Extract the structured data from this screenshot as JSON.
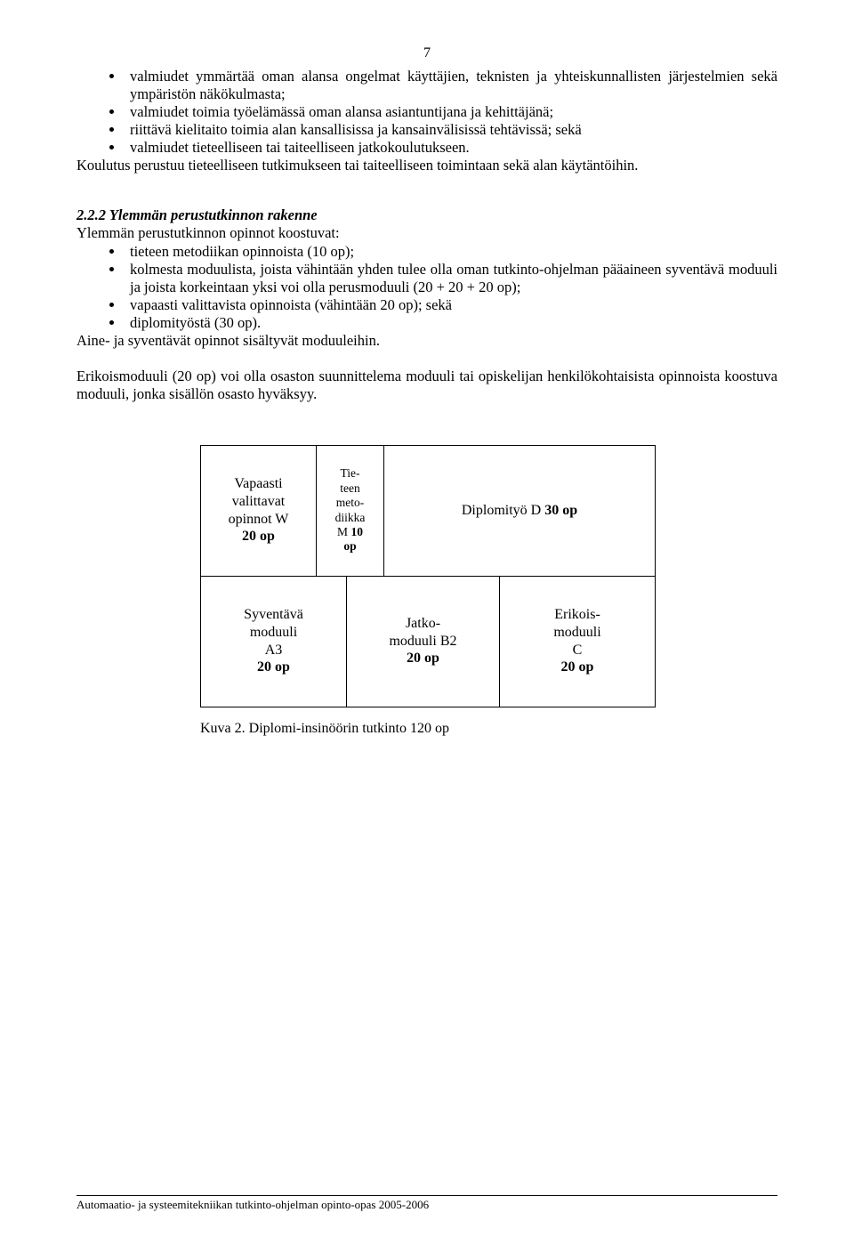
{
  "page_number": "7",
  "bullets_top": [
    "valmiudet ymmärtää oman alansa ongelmat käyttäjien, teknisten ja yhteiskunnallisten järjestelmien sekä ympäristön näkökulmasta;",
    "valmiudet toimia työelämässä oman alansa asiantuntijana ja kehittäjänä;",
    "riittävä kielitaito toimia alan kansallisissa ja kansainvälisissä tehtävissä; sekä",
    "valmiudet tieteelliseen tai taiteelliseen jatkokoulutukseen."
  ],
  "para_after_top": "Koulutus perustuu tieteelliseen tutkimukseen tai taiteelliseen toimintaan sekä alan käytäntöihin.",
  "section": {
    "title": "2.2.2 Ylemmän perustutkinnon rakenne",
    "lead": "Ylemmän perustutkinnon opinnot koostuvat:",
    "bullets": [
      "tieteen metodiikan opinnoista (10 op);",
      "kolmesta moduulista, joista vähintään yhden tulee olla oman tutkinto-ohjelman pääaineen syventävä moduuli ja joista korkeintaan yksi voi olla perusmoduuli (20 + 20 + 20 op);",
      "vapaasti valittavista opinnoista (vähintään 20 op); sekä",
      "diplomityöstä (30 op)."
    ],
    "after": "Aine- ja syventävät opinnot sisältyvät moduuleihin."
  },
  "para_erikoismoduuli": "Erikoismoduuli (20 op) voi olla osaston suunnittelema moduuli tai opiskelijan henkilökohtaisista opinnoista koostuva moduuli, jonka sisällön osasto hyväksyy.",
  "diagram": {
    "row1": {
      "a_line1": "Vapaasti",
      "a_line2": "valittavat",
      "a_line3": "opinnot W",
      "a_line4_bold": "20 op",
      "b_line1": "Tie-",
      "b_line2": "teen",
      "b_line3": "meto-",
      "b_line4": "diikka",
      "b_line5": "M ",
      "b_line5_bold": "10",
      "b_line6_bold": "op",
      "c_text": "Diplomityö D ",
      "c_bold": "30 op"
    },
    "row2": {
      "a_line1": "Syventävä",
      "a_line2": "moduuli",
      "a_line3": "A3",
      "a_line4_bold": "20 op",
      "b_line1": "Jatko-",
      "b_line2": "moduuli B2",
      "b_line3_bold": "20 op",
      "c_line1": "Erikois-",
      "c_line2": "moduuli",
      "c_line3": "C",
      "c_line4_bold": "20 op"
    },
    "caption": "Kuva 2. Diplomi-insinöörin tutkinto 120 op"
  },
  "footer": "Automaatio- ja systeemitekniikan tutkinto-ohjelman opinto-opas 2005-2006"
}
